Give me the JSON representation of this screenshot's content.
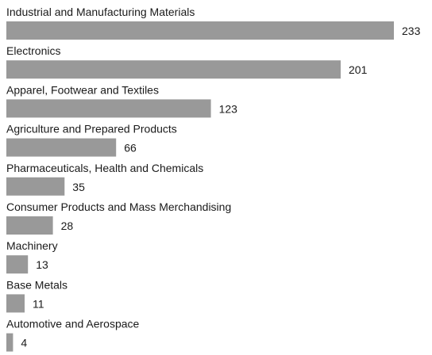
{
  "chart_data": {
    "type": "bar",
    "orientation": "horizontal",
    "categories": [
      "Industrial and Manufacturing Materials",
      "Electronics",
      "Apparel, Footwear and Textiles",
      "Agriculture and Prepared Products",
      "Pharmaceuticals, Health and Chemicals",
      "Consumer Products and Mass Merchandising",
      "Machinery",
      "Base Metals",
      "Automotive and Aerospace"
    ],
    "values": [
      233,
      201,
      123,
      66,
      35,
      28,
      13,
      11,
      4
    ],
    "value_labels": [
      "233",
      "201",
      "123",
      "66",
      "35",
      "28",
      "13",
      "11",
      "4"
    ],
    "title": "",
    "xlabel": "",
    "ylabel": "",
    "xlim": [
      0,
      233
    ],
    "grid": false,
    "legend": "none",
    "bar_color": "#999999"
  }
}
